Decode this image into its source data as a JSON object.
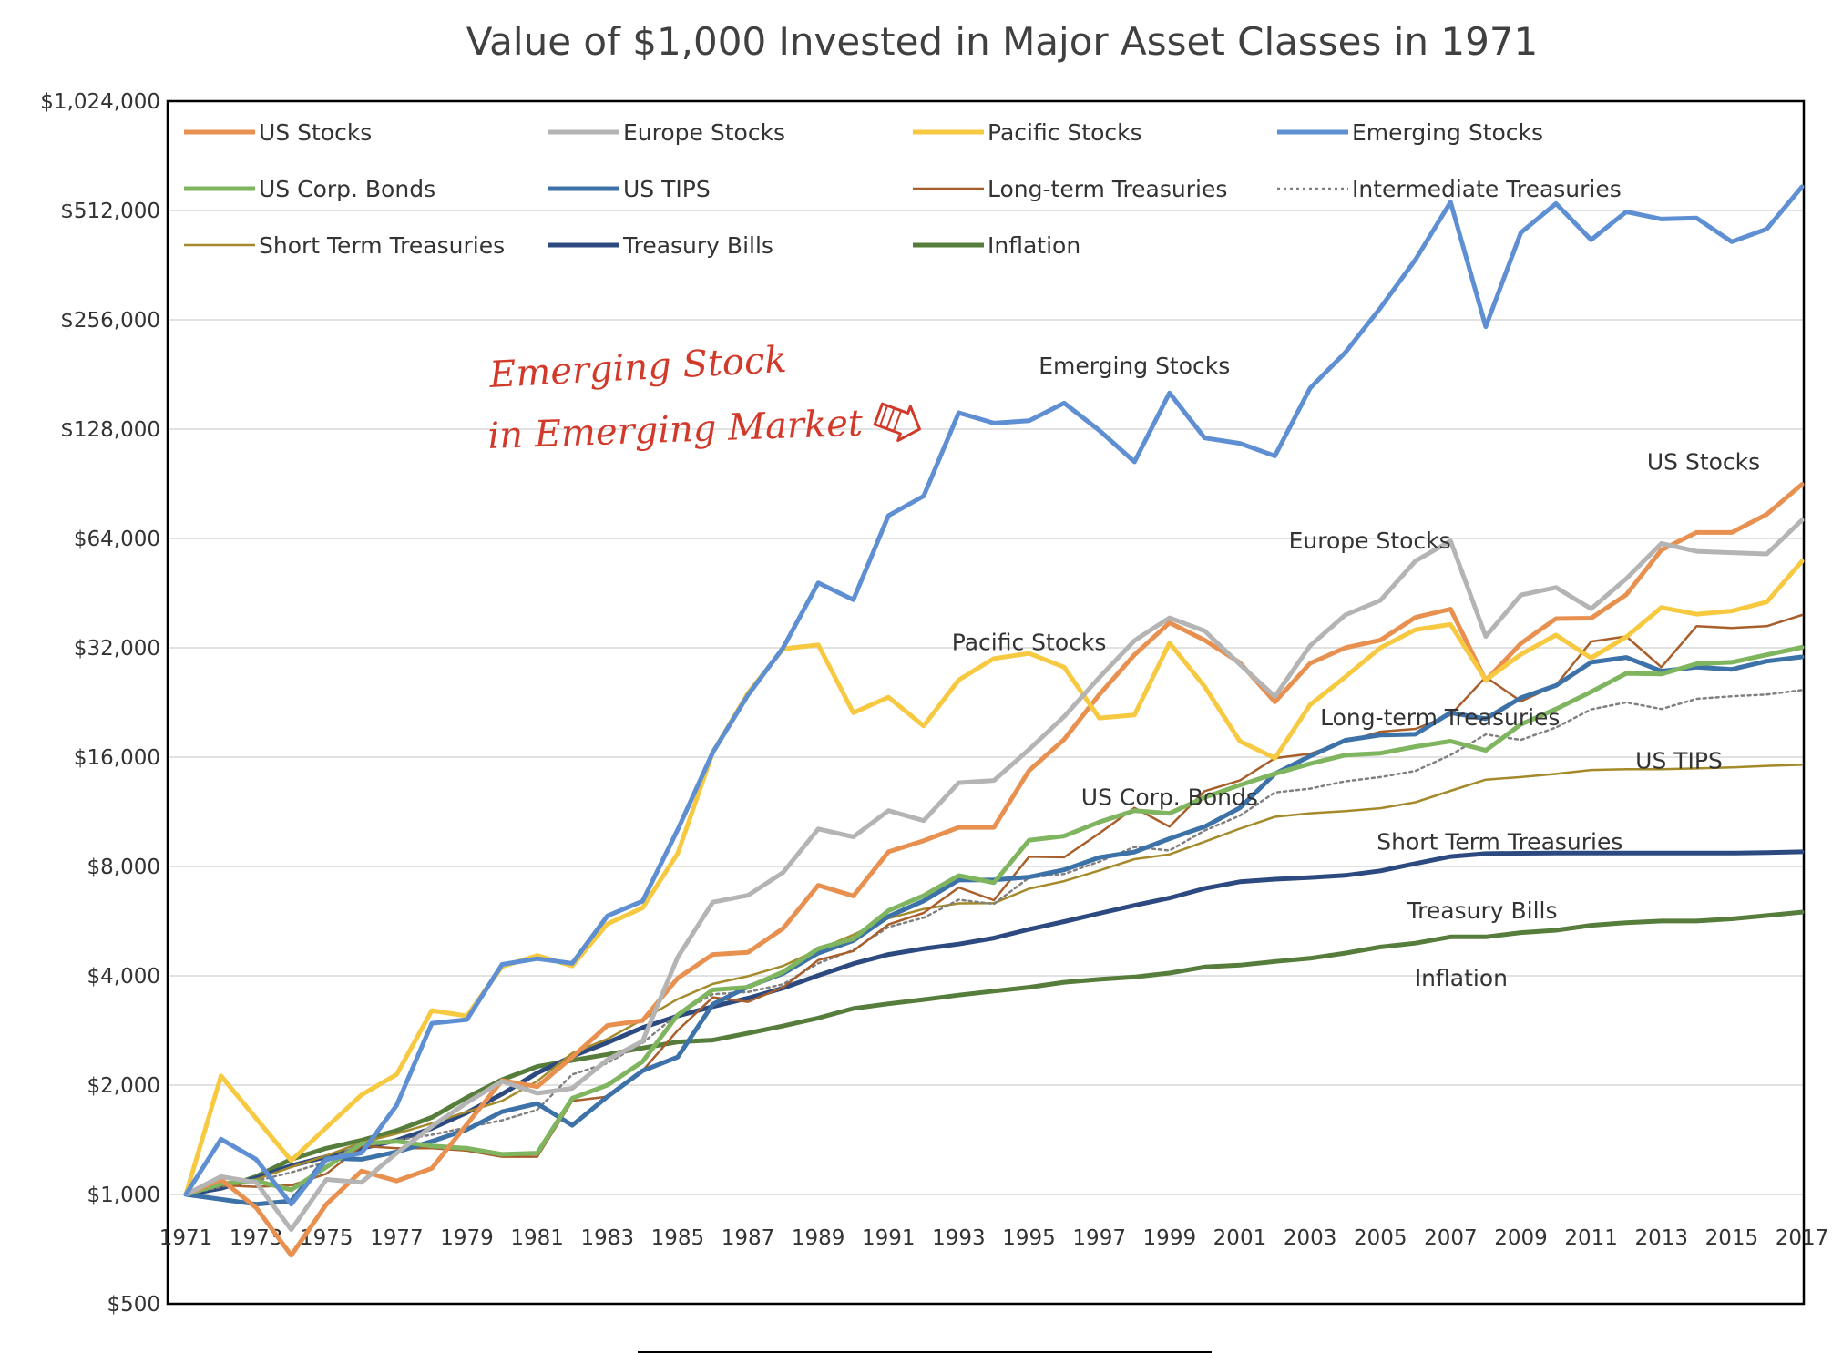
{
  "chart_data": {
    "type": "line",
    "title": "Value of $1,000 Invested in Major Asset Classes in 1971",
    "y_scale": "log2",
    "ylim": [
      500,
      1024000
    ],
    "y_ticks": [
      500,
      1000,
      2000,
      4000,
      8000,
      16000,
      32000,
      64000,
      128000,
      256000,
      512000,
      1024000
    ],
    "y_tick_labels": [
      "$500",
      "$1,000",
      "$2,000",
      "$4,000",
      "$8,000",
      "$16,000",
      "$32,000",
      "$64,000",
      "$128,000",
      "$256,000",
      "$512,000",
      "$1,024,000"
    ],
    "x_ticks": [
      1971,
      1973,
      1975,
      1977,
      1979,
      1981,
      1983,
      1985,
      1987,
      1989,
      1991,
      1993,
      1995,
      1997,
      1999,
      2001,
      2003,
      2005,
      2007,
      2009,
      2011,
      2013,
      2015,
      2017
    ],
    "x_tick_labels": [
      "1971",
      "1973",
      "1975",
      "1977",
      "1979",
      "1981",
      "1983",
      "1985",
      "1987",
      "1989",
      "1991",
      "1993",
      "1995",
      "1997",
      "1999",
      "2001",
      "2003",
      "2005",
      "2007",
      "2009",
      "2011",
      "2013",
      "2015",
      "2017"
    ],
    "x": [
      1971,
      1972,
      1973,
      1974,
      1975,
      1976,
      1977,
      1978,
      1979,
      1980,
      1981,
      1982,
      1983,
      1984,
      1985,
      1986,
      1987,
      1988,
      1989,
      1990,
      1991,
      1992,
      1993,
      1994,
      1995,
      1996,
      1997,
      1998,
      1999,
      2000,
      2001,
      2002,
      2003,
      2004,
      2005,
      2006,
      2007,
      2008,
      2009,
      2010,
      2011,
      2012,
      2013,
      2014,
      2015,
      2016,
      2017
    ],
    "grid": true,
    "legend_position": "top-left",
    "series": [
      {
        "name": "US Stocks",
        "color": "#e8904f",
        "width": 5,
        "dash": "",
        "values": [
          1000,
          1100,
          920,
          680,
          940,
          1160,
          1090,
          1180,
          1560,
          2060,
          1980,
          2390,
          2920,
          3010,
          3940,
          4580,
          4640,
          5400,
          7100,
          6640,
          8780,
          9420,
          10250,
          10250,
          14700,
          17900,
          23800,
          30600,
          37500,
          33600,
          29100,
          22700,
          29000,
          32000,
          33600,
          38800,
          40900,
          26000,
          32900,
          38500,
          38600,
          44800,
          59500,
          66500,
          66500,
          74600,
          90200
        ]
      },
      {
        "name": "Europe Stocks",
        "color": "#b4b4b4",
        "width": 5,
        "dash": "",
        "values": [
          1000,
          1120,
          1080,
          800,
          1100,
          1080,
          1300,
          1540,
          1790,
          2050,
          1900,
          1960,
          2350,
          2640,
          4500,
          6380,
          6660,
          7700,
          10150,
          9650,
          11400,
          10700,
          13600,
          13800,
          16800,
          20700,
          26500,
          33500,
          38700,
          35600,
          28800,
          23500,
          32400,
          39400,
          43200,
          55500,
          63000,
          34400,
          44700,
          46900,
          41000,
          49600,
          62000,
          59000,
          58500,
          58000,
          71900
        ]
      },
      {
        "name": "Pacific Stocks",
        "color": "#f6c941",
        "width": 5,
        "dash": "",
        "values": [
          1000,
          2120,
          1620,
          1240,
          1530,
          1880,
          2140,
          3210,
          3100,
          4240,
          4550,
          4260,
          5560,
          6150,
          8690,
          16500,
          24000,
          31800,
          32600,
          21200,
          23400,
          19500,
          26100,
          29900,
          30900,
          28300,
          20500,
          20900,
          33000,
          25000,
          17700,
          15900,
          22300,
          26600,
          32000,
          35900,
          37100,
          26100,
          30700,
          34700,
          30000,
          34300,
          41300,
          39600,
          40400,
          42800,
          55400
        ]
      },
      {
        "name": "Emerging Stocks",
        "color": "#5f8fd3",
        "width": 5,
        "dash": "",
        "values": [
          1000,
          1420,
          1250,
          940,
          1250,
          1300,
          1760,
          2960,
          3030,
          4300,
          4460,
          4330,
          5850,
          6420,
          10100,
          16500,
          23700,
          32000,
          48300,
          43400,
          74000,
          83700,
          142000,
          133000,
          135000,
          151000,
          127000,
          104000,
          161000,
          121000,
          117000,
          108000,
          166000,
          208000,
          276000,
          375000,
          540000,
          245000,
          445000,
          535000,
          425000,
          508000,
          485000,
          488000,
          420000,
          455000,
          595000
        ]
      },
      {
        "name": "US Corp. Bonds",
        "color": "#7fb55e",
        "width": 5,
        "dash": "",
        "values": [
          1000,
          1070,
          1090,
          1030,
          1190,
          1380,
          1400,
          1360,
          1340,
          1290,
          1300,
          1840,
          2000,
          2320,
          3120,
          3660,
          3720,
          4100,
          4750,
          5060,
          6050,
          6650,
          7550,
          7220,
          9450,
          9700,
          10600,
          11400,
          11200,
          12400,
          13400,
          14400,
          15350,
          16200,
          16400,
          17100,
          17700,
          16700,
          19700,
          21700,
          24200,
          27200,
          27100,
          28900,
          29200,
          30600,
          32100
        ]
      },
      {
        "name": "US TIPS",
        "color": "#3d72a8",
        "width": 5,
        "dash": "",
        "values": [
          1000,
          970,
          940,
          960,
          1260,
          1250,
          1310,
          1400,
          1510,
          1690,
          1780,
          1550,
          1860,
          2190,
          2390,
          3340,
          3730,
          4060,
          4620,
          5000,
          5830,
          6430,
          7340,
          7350,
          7480,
          7830,
          8470,
          8770,
          9540,
          10300,
          11600,
          14400,
          16100,
          17800,
          18400,
          18500,
          21200,
          20400,
          23300,
          25200,
          29200,
          30100,
          27600,
          28300,
          27900,
          29400,
          30200
        ]
      },
      {
        "name": "Long-term Treasuries",
        "color": "#a85f2b",
        "width": 2.5,
        "dash": "",
        "values": [
          1000,
          1060,
          1050,
          1060,
          1140,
          1360,
          1340,
          1340,
          1320,
          1270,
          1270,
          1810,
          1860,
          2190,
          2830,
          3490,
          3390,
          3720,
          4420,
          4680,
          5540,
          5960,
          7000,
          6460,
          8510,
          8480,
          9870,
          11600,
          10300,
          12900,
          13800,
          15900,
          16350,
          17640,
          18800,
          19140,
          20910,
          26600,
          22800,
          25240,
          33300,
          34400,
          28300,
          36700,
          36300,
          36700,
          39400
        ]
      },
      {
        "name": "Intermediate Treasuries",
        "color": "#808080",
        "width": 2.5,
        "dash": "3,4",
        "values": [
          1000,
          1050,
          1090,
          1150,
          1230,
          1390,
          1410,
          1460,
          1530,
          1600,
          1710,
          2140,
          2300,
          2610,
          3140,
          3560,
          3610,
          3790,
          4330,
          4710,
          5450,
          5780,
          6480,
          6310,
          7450,
          7630,
          8250,
          9050,
          8850,
          10050,
          11040,
          12790,
          13100,
          13730,
          14100,
          14660,
          16220,
          18470,
          17850,
          19300,
          21660,
          22640,
          21710,
          23150,
          23540,
          23790,
          24470
        ]
      },
      {
        "name": "Short Term Treasuries",
        "color": "#a48a2a",
        "width": 2.5,
        "dash": "",
        "values": [
          1000,
          1060,
          1100,
          1190,
          1280,
          1390,
          1470,
          1570,
          1690,
          1810,
          2050,
          2450,
          2680,
          3030,
          3450,
          3800,
          3990,
          4260,
          4720,
          5190,
          5760,
          6110,
          6330,
          6340,
          6950,
          7290,
          7800,
          8380,
          8640,
          9360,
          10170,
          10960,
          11210,
          11360,
          11570,
          12020,
          12920,
          13870,
          14100,
          14390,
          14750,
          14820,
          14820,
          14890,
          14990,
          15140,
          15240
        ]
      },
      {
        "name": "Treasury Bills",
        "color": "#2c4a80",
        "width": 5,
        "dash": "",
        "values": [
          1000,
          1040,
          1110,
          1200,
          1270,
          1340,
          1410,
          1520,
          1680,
          1890,
          2160,
          2400,
          2620,
          2880,
          3100,
          3290,
          3470,
          3700,
          4010,
          4320,
          4580,
          4750,
          4890,
          5080,
          5370,
          5640,
          5940,
          6250,
          6550,
          6960,
          7260,
          7380,
          7460,
          7560,
          7780,
          8150,
          8520,
          8680,
          8700,
          8710,
          8710,
          8710,
          8710,
          8710,
          8710,
          8740,
          8780
        ]
      },
      {
        "name": "Inflation",
        "color": "#567d3b",
        "width": 5,
        "dash": "",
        "values": [
          1000,
          1040,
          1120,
          1250,
          1340,
          1410,
          1500,
          1630,
          1850,
          2070,
          2250,
          2340,
          2430,
          2530,
          2630,
          2660,
          2780,
          2910,
          3060,
          3250,
          3350,
          3440,
          3540,
          3630,
          3720,
          3840,
          3910,
          3970,
          4070,
          4230,
          4280,
          4380,
          4470,
          4620,
          4800,
          4920,
          5120,
          5120,
          5260,
          5340,
          5510,
          5600,
          5660,
          5660,
          5740,
          5860,
          5990
        ]
      }
    ],
    "annotations": [
      {
        "text": "Emerging Stocks",
        "year": 1998,
        "value": 182000
      },
      {
        "text": "US Stocks",
        "year": 2014.2,
        "value": 99000
      },
      {
        "text": "Europe Stocks",
        "year": 2004.7,
        "value": 60000
      },
      {
        "text": "Pacific Stocks",
        "year": 1995,
        "value": 31500
      },
      {
        "text": "Long-term Treasuries",
        "year": 2006.7,
        "value": 19600
      },
      {
        "text": "US TIPS",
        "year": 2013.5,
        "value": 14900
      },
      {
        "text": "US Corp. Bonds",
        "year": 1999,
        "value": 11800
      },
      {
        "text": "Short Term Treasuries",
        "year": 2008.4,
        "value": 8900
      },
      {
        "text": "Treasury Bills",
        "year": 2007.9,
        "value": 5750
      },
      {
        "text": "Inflation",
        "year": 2007.3,
        "value": 3750
      }
    ],
    "handwritten_note": {
      "lines": [
        "Emerging Stock",
        "in Emerging Market"
      ],
      "color": "#d13a2a"
    }
  }
}
